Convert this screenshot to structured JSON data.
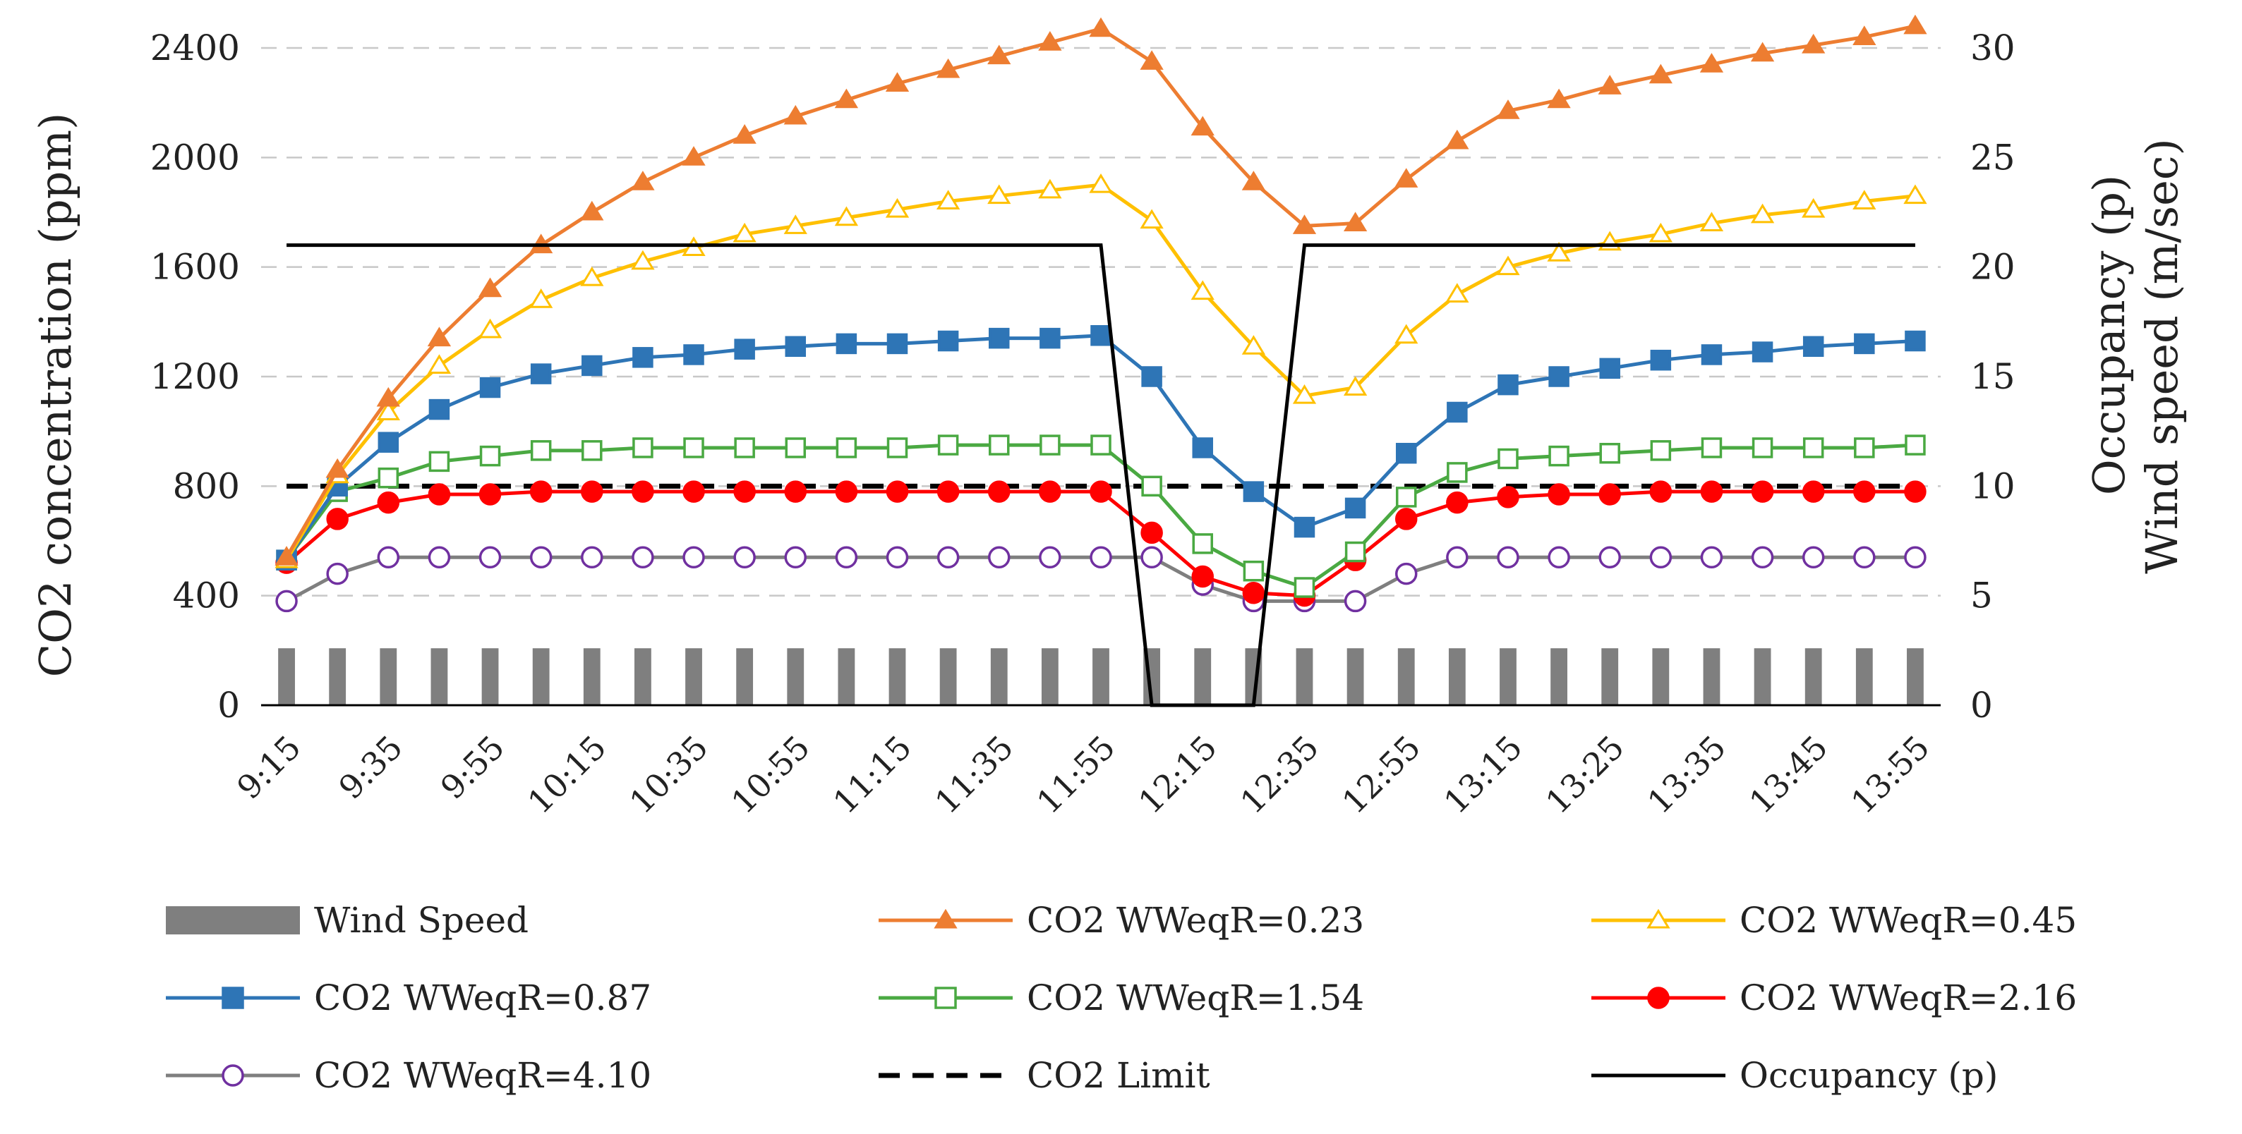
{
  "chart_data": {
    "type": "line",
    "title": "",
    "ylabel": "CO2 concentration (ppm)",
    "y2label_lines": [
      "Occupancy (p)",
      "Wind speed  (m/sec)"
    ],
    "xlabel": "",
    "ylim": [
      0,
      2400
    ],
    "y_ticks": [
      "0",
      "400",
      "800",
      "1200",
      "1600",
      "2000",
      "2400"
    ],
    "y2lim": [
      0,
      30
    ],
    "y2_ticks": [
      "0",
      "5",
      "10",
      "15",
      "20",
      "25",
      "30"
    ],
    "grid": true,
    "x": [
      "9:15",
      "9:25",
      "9:35",
      "9:45",
      "9:55",
      "10:05",
      "10:15",
      "10:25",
      "10:35",
      "10:45",
      "10:55",
      "11:05",
      "11:15",
      "11:25",
      "11:35",
      "11:45",
      "11:55",
      "12:05",
      "12:15",
      "12:25",
      "12:35",
      "12:45",
      "12:55",
      "13:05",
      "13:15",
      "13:20",
      "13:25",
      "13:30",
      "13:35",
      "13:40",
      "13:45",
      "13:50",
      "13:55"
    ],
    "x_tick_labels": [
      "9:15",
      "9:35",
      "9:55",
      "10:15",
      "10:35",
      "10:55",
      "11:15",
      "11:35",
      "11:55",
      "12:15",
      "12:35",
      "12:55",
      "13:15",
      "13:25",
      "13:35",
      "13:45",
      "13:55"
    ],
    "wind_speed": {
      "name": "Wind Speed",
      "color": "#7f7f7f",
      "axis": "secondary",
      "values": [
        2.6,
        2.6,
        2.6,
        2.6,
        2.6,
        2.6,
        2.6,
        2.6,
        2.6,
        2.6,
        2.6,
        2.6,
        2.6,
        2.6,
        2.6,
        2.6,
        2.6,
        2.6,
        2.6,
        2.6,
        2.6,
        2.6,
        2.6,
        2.6,
        2.6,
        2.6,
        2.6,
        2.6,
        2.6,
        2.6,
        2.6,
        2.6,
        2.6
      ]
    },
    "series": [
      {
        "name": "CO2 WWeqR=0.23",
        "color": "#ed7d31",
        "marker": "triangle",
        "filled": true,
        "values": [
          540,
          860,
          1120,
          1340,
          1520,
          1680,
          1800,
          1910,
          2000,
          2080,
          2150,
          2210,
          2270,
          2320,
          2370,
          2420,
          2470,
          2350,
          2110,
          1910,
          1750,
          1760,
          1920,
          2060,
          2170,
          2210,
          2260,
          2300,
          2340,
          2380,
          2410,
          2440,
          2480
        ]
      },
      {
        "name": "CO2 WWeqR=0.45",
        "color": "#ffc000",
        "marker": "triangle",
        "filled": false,
        "values": [
          530,
          840,
          1070,
          1240,
          1370,
          1480,
          1560,
          1620,
          1670,
          1720,
          1750,
          1780,
          1810,
          1840,
          1860,
          1880,
          1900,
          1770,
          1510,
          1310,
          1130,
          1160,
          1350,
          1500,
          1600,
          1650,
          1690,
          1720,
          1760,
          1790,
          1810,
          1840,
          1860
        ]
      },
      {
        "name": "CO2 WWeqR=0.87",
        "color": "#2e75b6",
        "marker": "square",
        "filled": true,
        "values": [
          530,
          800,
          960,
          1080,
          1160,
          1210,
          1240,
          1270,
          1280,
          1300,
          1310,
          1320,
          1320,
          1330,
          1340,
          1340,
          1350,
          1200,
          940,
          780,
          650,
          720,
          920,
          1070,
          1170,
          1200,
          1230,
          1260,
          1280,
          1290,
          1310,
          1320,
          1330
        ]
      },
      {
        "name": "CO2 WWeqR=1.54",
        "color": "#4aa942",
        "marker": "square",
        "filled": false,
        "values": [
          530,
          780,
          830,
          890,
          910,
          930,
          930,
          940,
          940,
          940,
          940,
          940,
          940,
          950,
          950,
          950,
          950,
          800,
          590,
          490,
          430,
          560,
          760,
          850,
          900,
          910,
          920,
          930,
          940,
          940,
          940,
          940,
          950
        ]
      },
      {
        "name": "CO2 WWeqR=2.16",
        "color": "#ff0000",
        "marker": "circle",
        "filled": true,
        "values": [
          520,
          680,
          740,
          770,
          770,
          780,
          780,
          780,
          780,
          780,
          780,
          780,
          780,
          780,
          780,
          780,
          780,
          630,
          470,
          410,
          400,
          530,
          680,
          740,
          760,
          770,
          770,
          780,
          780,
          780,
          780,
          780,
          780
        ]
      },
      {
        "name": "CO2 WWeqR=4.10",
        "color": "#7030a0",
        "line_color": "#7f7f7f",
        "marker": "circle",
        "filled": false,
        "values": [
          380,
          480,
          540,
          540,
          540,
          540,
          540,
          540,
          540,
          540,
          540,
          540,
          540,
          540,
          540,
          540,
          540,
          540,
          440,
          380,
          380,
          380,
          480,
          540,
          540,
          540,
          540,
          540,
          540,
          540,
          540,
          540,
          540
        ]
      }
    ],
    "co2_limit": {
      "name": "CO2 Limit",
      "color": "#000000",
      "value": 800
    },
    "occupancy": {
      "name": "Occupancy (p)",
      "color": "#000000",
      "axis": "secondary",
      "x": [
        0,
        16,
        17,
        19,
        20,
        32
      ],
      "values": [
        21,
        21,
        0,
        0,
        21,
        21
      ]
    },
    "legend": [
      "Wind Speed",
      "CO2 WWeqR=0.23",
      "CO2 WWeqR=0.45",
      "CO2 WWeqR=0.87",
      "CO2 WWeqR=1.54",
      "CO2 WWeqR=2.16",
      "CO2 WWeqR=4.10",
      "CO2 Limit",
      "Occupancy (p)"
    ],
    "legend_position": "bottom"
  }
}
